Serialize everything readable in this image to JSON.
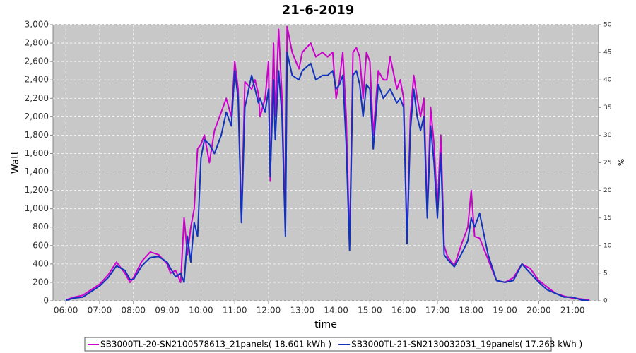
{
  "chart_data": {
    "type": "line",
    "title": "21-6-2019",
    "xlabel": "time",
    "ylabel": "Watt",
    "y2label": "%",
    "x": [
      6.0,
      6.25,
      6.5,
      6.75,
      7.0,
      7.25,
      7.5,
      7.75,
      7.9,
      8.0,
      8.25,
      8.5,
      8.75,
      9.0,
      9.1,
      9.25,
      9.4,
      9.5,
      9.6,
      9.7,
      9.8,
      9.9,
      10.0,
      10.1,
      10.25,
      10.4,
      10.6,
      10.75,
      10.9,
      11.0,
      11.1,
      11.2,
      11.3,
      11.5,
      11.6,
      11.7,
      11.75,
      11.9,
      12.0,
      12.05,
      12.15,
      12.2,
      12.3,
      12.4,
      12.5,
      12.55,
      12.7,
      12.9,
      13.0,
      13.25,
      13.4,
      13.6,
      13.75,
      13.9,
      14.0,
      14.1,
      14.2,
      14.3,
      14.4,
      14.5,
      14.6,
      14.7,
      14.8,
      14.9,
      15.0,
      15.1,
      15.25,
      15.4,
      15.5,
      15.6,
      15.8,
      15.9,
      16.0,
      16.1,
      16.2,
      16.3,
      16.4,
      16.5,
      16.6,
      16.7,
      16.8,
      16.9,
      17.0,
      17.1,
      17.2,
      17.3,
      17.5,
      17.7,
      17.9,
      18.0,
      18.1,
      18.25,
      18.5,
      18.75,
      19.0,
      19.25,
      19.5,
      19.75,
      20.0,
      20.25,
      20.5,
      20.75,
      21.0,
      21.25,
      21.5
    ],
    "series": [
      {
        "name": "SB3000TL-20-SN2100578613_21panels( 18.601 kWh )",
        "color": "#cc00cc",
        "values": [
          10,
          40,
          60,
          120,
          180,
          280,
          420,
          300,
          200,
          250,
          430,
          530,
          500,
          400,
          300,
          330,
          200,
          900,
          500,
          800,
          1000,
          1650,
          1700,
          1800,
          1500,
          1850,
          2050,
          2200,
          2000,
          2600,
          2300,
          880,
          2380,
          2300,
          2400,
          2250,
          2000,
          2200,
          2600,
          1300,
          2800,
          2000,
          2950,
          2200,
          750,
          2980,
          2700,
          2520,
          2700,
          2800,
          2650,
          2700,
          2650,
          2700,
          2200,
          2400,
          2700,
          2000,
          600,
          2700,
          2750,
          2650,
          2200,
          2700,
          2600,
          1800,
          2500,
          2400,
          2400,
          2650,
          2300,
          2400,
          2200,
          650,
          2000,
          2450,
          2200,
          2000,
          2200,
          950,
          2100,
          1700,
          1000,
          1800,
          600,
          480,
          380,
          600,
          800,
          1200,
          700,
          680,
          450,
          220,
          200,
          250,
          400,
          350,
          220,
          150,
          80,
          50,
          30,
          20,
          5
        ]
      },
      {
        "name": "SB3000TL-21-SN2130032031_19panels( 17.263 kWh )",
        "color": "#1133bb",
        "values": [
          5,
          30,
          40,
          100,
          160,
          250,
          380,
          330,
          230,
          230,
          380,
          470,
          480,
          420,
          350,
          260,
          300,
          200,
          700,
          420,
          850,
          700,
          1550,
          1750,
          1700,
          1600,
          1800,
          2050,
          1900,
          2500,
          2200,
          850,
          2100,
          2450,
          2300,
          2150,
          2200,
          2050,
          2300,
          1350,
          2400,
          1750,
          2500,
          2000,
          700,
          2700,
          2450,
          2400,
          2500,
          2580,
          2400,
          2450,
          2450,
          2500,
          2300,
          2350,
          2450,
          1700,
          550,
          2450,
          2500,
          2350,
          2000,
          2350,
          2300,
          1650,
          2350,
          2200,
          2250,
          2300,
          2150,
          2200,
          2100,
          620,
          1850,
          2300,
          2000,
          1850,
          2000,
          900,
          1900,
          1500,
          900,
          1600,
          500,
          450,
          370,
          500,
          650,
          900,
          800,
          950,
          500,
          220,
          200,
          220,
          400,
          300,
          200,
          120,
          80,
          40,
          40,
          10,
          0
        ]
      }
    ],
    "xlim": [
      5.62,
      21.77
    ],
    "xticks": [
      {
        "value": 6,
        "label": "06:00"
      },
      {
        "value": 7,
        "label": "07:00"
      },
      {
        "value": 8,
        "label": "08:00"
      },
      {
        "value": 9,
        "label": "09:00"
      },
      {
        "value": 10,
        "label": "10:00"
      },
      {
        "value": 11,
        "label": "11:00"
      },
      {
        "value": 12,
        "label": "12:00"
      },
      {
        "value": 13,
        "label": "13:00"
      },
      {
        "value": 14,
        "label": "14:00"
      },
      {
        "value": 15,
        "label": "15:00"
      },
      {
        "value": 16,
        "label": "16:00"
      },
      {
        "value": 17,
        "label": "17:00"
      },
      {
        "value": 18,
        "label": "18:00"
      },
      {
        "value": 19,
        "label": "19:00"
      },
      {
        "value": 20,
        "label": "20:00"
      },
      {
        "value": 21,
        "label": "21:00"
      }
    ],
    "ylim": [
      0,
      3000
    ],
    "yticks": [
      0,
      200,
      400,
      600,
      800,
      {
        "value": 1000,
        "label": "1,000"
      },
      {
        "value": 1200,
        "label": "1,200"
      },
      {
        "value": 1400,
        "label": "1,400"
      },
      {
        "value": 1600,
        "label": "1,600"
      },
      {
        "value": 1800,
        "label": "1,800"
      },
      {
        "value": 2000,
        "label": "2,000"
      },
      {
        "value": 2200,
        "label": "2,200"
      },
      {
        "value": 2400,
        "label": "2,400"
      },
      {
        "value": 2600,
        "label": "2,600"
      },
      {
        "value": 2800,
        "label": "2,800"
      },
      {
        "value": 3000,
        "label": "3,000"
      }
    ],
    "y2lim": [
      0,
      50
    ],
    "y2ticks": [
      0,
      5,
      10,
      15,
      20,
      25,
      30,
      35,
      40,
      45,
      50
    ],
    "grid": true,
    "legend": "bottom",
    "background": "#c8c8c8"
  }
}
